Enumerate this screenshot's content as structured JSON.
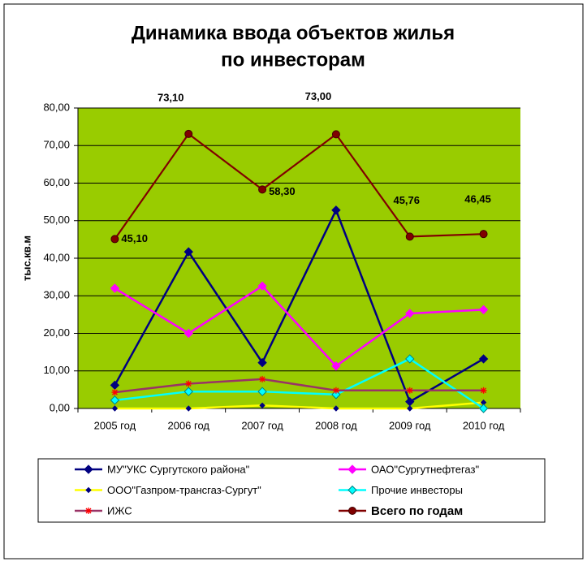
{
  "chart_data": {
    "type": "line",
    "title": [
      "Динамика ввода объектов жилья",
      "по инвесторам"
    ],
    "y_label": "тыс.кв.м",
    "categories": [
      "2005 год",
      "2006 год",
      "2007 год",
      "2008 год",
      "2009 год",
      "2010 год"
    ],
    "ylim": [
      0,
      80
    ],
    "yticks": [
      {
        "value": 0,
        "label": "0,00"
      },
      {
        "value": 10,
        "label": "10,00"
      },
      {
        "value": 20,
        "label": "20,00"
      },
      {
        "value": 30,
        "label": "30,00"
      },
      {
        "value": 40,
        "label": "40,00"
      },
      {
        "value": 50,
        "label": "50,00"
      },
      {
        "value": 60,
        "label": "60,00"
      },
      {
        "value": 70,
        "label": "70,00"
      },
      {
        "value": 80,
        "label": "80,00"
      }
    ],
    "grid": true,
    "plot_background": "#99cc00",
    "legend": "bottom",
    "series": [
      {
        "name": "МУ\"УКС Сургутского района\"",
        "color": "#000080",
        "marker": "diamond",
        "marker_color": "#000080",
        "values": [
          6.2,
          41.7,
          12.2,
          52.8,
          1.8,
          13.2
        ]
      },
      {
        "name": "ОАО\"Сургутнефтегаз\"",
        "color": "#ff00ff",
        "marker": "diamond",
        "marker_color": "#ff00ff",
        "values": [
          32.0,
          20.0,
          32.6,
          11.3,
          25.3,
          26.3
        ]
      },
      {
        "name": "ООО\"Газпром-трансгаз-Сургут\"",
        "color": "#ffff00",
        "marker": "small-diamond",
        "marker_color": "#000080",
        "values": [
          0,
          0,
          0.8,
          0,
          0,
          1.6
        ]
      },
      {
        "name": "Прочие инвесторы",
        "color": "#00ffff",
        "marker": "diamond",
        "marker_color": "#00ffff",
        "values": [
          2.2,
          4.5,
          4.5,
          3.7,
          13.2,
          0
        ]
      },
      {
        "name": "ИЖС",
        "color": "#993366",
        "marker": "star",
        "marker_color": "#ff0000",
        "values": [
          4.3,
          6.6,
          7.8,
          4.8,
          4.8,
          4.8
        ]
      },
      {
        "name": "Всего по годам",
        "color": "#800000",
        "marker": "circle",
        "marker_color": "#800000",
        "values": [
          45.1,
          73.1,
          58.3,
          73.0,
          45.76,
          46.45
        ],
        "value_labels": [
          "45,10",
          "73,10",
          "58,30",
          "73,00",
          "45,76",
          "46,45"
        ]
      }
    ]
  }
}
